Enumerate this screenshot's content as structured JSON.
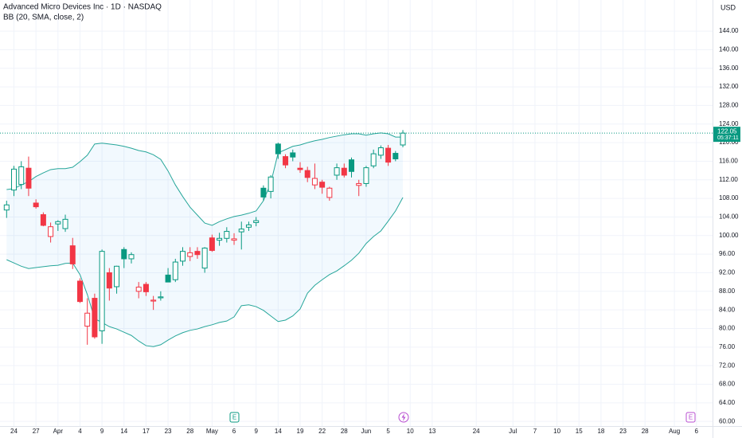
{
  "chart_data": {
    "type": "candlestick",
    "title": "Advanced Micro Devices Inc · 1D · NASDAQ",
    "indicator": "BB (20, SMA, close, 2)",
    "currency": "USD",
    "countdown": "05:37:11",
    "events": [
      "E",
      "E"
    ],
    "up_color": "#089981",
    "down_color": "#f23645",
    "band_color": "#26a69a",
    "grid": true,
    "open": [
      105.5,
      109.8,
      111,
      114.5,
      107,
      104.5,
      99.8,
      102.5,
      101.5,
      97.8,
      90.2,
      80.5,
      86.5,
      79.5,
      92,
      89,
      97,
      95,
      88,
      89.5,
      85.9,
      86.6,
      91.5,
      90.5,
      94.5,
      95.5,
      96.6,
      93,
      99.5,
      99,
      99.4,
      99,
      100.8,
      101.8,
      102.8,
      110.2,
      109.5,
      119.7,
      117,
      117.8,
      114.5,
      114,
      110.9,
      111.5,
      108.2,
      113,
      114.5,
      116.3,
      110.8,
      111.2,
      115,
      117.3,
      118.8,
      117.7,
      119.5
    ],
    "high": [
      107.5,
      115,
      116,
      117,
      107.8,
      105,
      102.8,
      103.3,
      104.5,
      99.5,
      90.8,
      86.5,
      87.5,
      97,
      93,
      93.5,
      97.5,
      96.4,
      90,
      90,
      87,
      88,
      93,
      95,
      97.5,
      97.5,
      97.5,
      97.5,
      100.2,
      100.6,
      101.8,
      100.5,
      103,
      103,
      104,
      110.8,
      113,
      120,
      117.5,
      118.5,
      115.8,
      114.8,
      115.5,
      112,
      110.5,
      115.5,
      115.5,
      116.8,
      112,
      115,
      118.5,
      119.4,
      119.5,
      118.2,
      122.7
    ],
    "low": [
      103.8,
      108.5,
      110,
      108.5,
      105.8,
      102,
      98.5,
      101,
      100.8,
      92.8,
      85.5,
      76.5,
      77.8,
      76.7,
      86,
      87.5,
      93,
      94,
      86.5,
      87,
      84,
      86,
      90,
      90,
      93.5,
      94.5,
      95,
      92,
      96.5,
      97.8,
      98.5,
      98,
      97,
      101,
      102,
      107.5,
      108,
      116.5,
      114.5,
      116,
      113.5,
      111.5,
      110,
      109,
      107.5,
      112,
      112.5,
      112.5,
      108.5,
      110.5,
      114.5,
      116.5,
      115,
      116,
      119
    ],
    "close": [
      106.6,
      114.3,
      114.8,
      110.2,
      106.2,
      102.2,
      101.9,
      103,
      103.5,
      93.9,
      85.8,
      83.3,
      78.2,
      96.6,
      88.7,
      93.4,
      95,
      95.9,
      88.9,
      87.9,
      86.1,
      86.8,
      90,
      94.3,
      96.6,
      96.3,
      95.9,
      97.3,
      96.8,
      99.4,
      100.9,
      99.3,
      101.4,
      102.3,
      103.2,
      108.3,
      112.6,
      117.6,
      115.2,
      116.9,
      114.2,
      112.5,
      112.3,
      110.4,
      110.2,
      114.6,
      113,
      113.8,
      111.2,
      114.6,
      117.6,
      118.9,
      115.8,
      116.5,
      122.05
    ],
    "bb_upper": [
      109.9,
      110.1,
      110.9,
      111.6,
      112.7,
      113.5,
      114.2,
      114.4,
      114.4,
      114.7,
      115.9,
      117.3,
      119.7,
      119.9,
      119.7,
      119.5,
      119.2,
      118.8,
      118.3,
      118.0,
      117.4,
      116.4,
      113.9,
      110.9,
      108.4,
      106.1,
      104.4,
      102.7,
      102.2,
      103.0,
      103.6,
      104.1,
      104.4,
      104.8,
      105.3,
      107.5,
      111.3,
      117.8,
      118.5,
      119.2,
      119.5,
      120.0,
      120.4,
      120.7,
      121.1,
      121.4,
      121.7,
      121.9,
      121.9,
      121.6,
      121.9,
      122.1,
      121.9,
      121.2,
      121.2
    ],
    "bb_lower": [
      94.8,
      94.1,
      93.4,
      92.9,
      93.1,
      93.3,
      93.5,
      93.6,
      94.0,
      94.1,
      91.6,
      87.3,
      82.1,
      81.3,
      80.4,
      79.9,
      79.2,
      78.5,
      77.3,
      76.3,
      76.1,
      76.5,
      77.5,
      78.4,
      79.1,
      79.6,
      79.9,
      80.4,
      80.8,
      81.3,
      81.6,
      82.5,
      84.9,
      85.1,
      84.7,
      83.9,
      82.7,
      81.5,
      81.8,
      82.7,
      84.2,
      87.6,
      89.3,
      90.5,
      91.6,
      92.4,
      93.5,
      94.7,
      96.2,
      98.3,
      99.8,
      101.0,
      103.1,
      105.3,
      108.2
    ],
    "xlim": [
      -0.9,
      96.2
    ],
    "xticks": [
      {
        "value": 1,
        "label": "24"
      },
      {
        "value": 4,
        "label": "27"
      },
      {
        "value": 7,
        "label": "Apr"
      },
      {
        "value": 10,
        "label": "4"
      },
      {
        "value": 13,
        "label": "9"
      },
      {
        "value": 16,
        "label": "14"
      },
      {
        "value": 19,
        "label": "17"
      },
      {
        "value": 22,
        "label": "23"
      },
      {
        "value": 25,
        "label": "28"
      },
      {
        "value": 28,
        "label": "May"
      },
      {
        "value": 31,
        "label": "6"
      },
      {
        "value": 34,
        "label": "9"
      },
      {
        "value": 37,
        "label": "14"
      },
      {
        "value": 40,
        "label": "19"
      },
      {
        "value": 43,
        "label": "22"
      },
      {
        "value": 46,
        "label": "28"
      },
      {
        "value": 49,
        "label": "Jun"
      },
      {
        "value": 52,
        "label": "5"
      },
      {
        "value": 55,
        "label": "10"
      },
      {
        "value": 58,
        "label": "13"
      },
      {
        "value": 64,
        "label": "24"
      },
      {
        "value": 69,
        "label": "Jul"
      },
      {
        "value": 72,
        "label": "7"
      },
      {
        "value": 75,
        "label": "10"
      },
      {
        "value": 78,
        "label": "15"
      },
      {
        "value": 81,
        "label": "18"
      },
      {
        "value": 84,
        "label": "23"
      },
      {
        "value": 87,
        "label": "28"
      },
      {
        "value": 91,
        "label": "Aug"
      },
      {
        "value": 94,
        "label": "6"
      }
    ],
    "ylim": [
      59,
      150.7
    ],
    "yticks": [
      {
        "value": 60,
        "label": "60.00"
      },
      {
        "value": 64,
        "label": "64.00"
      },
      {
        "value": 68,
        "label": "68.00"
      },
      {
        "value": 72,
        "label": "72.00"
      },
      {
        "value": 76,
        "label": "76.00"
      },
      {
        "value": 80,
        "label": "80.00"
      },
      {
        "value": 84,
        "label": "84.00"
      },
      {
        "value": 88,
        "label": "88.00"
      },
      {
        "value": 92,
        "label": "92.00"
      },
      {
        "value": 96,
        "label": "96.00"
      },
      {
        "value": 100,
        "label": "100.00"
      },
      {
        "value": 104,
        "label": "104.00"
      },
      {
        "value": 108,
        "label": "108.00"
      },
      {
        "value": 112,
        "label": "112.00"
      },
      {
        "value": 116,
        "label": "116.00"
      },
      {
        "value": 120,
        "label": "120.00"
      },
      {
        "value": 124,
        "label": "124.00"
      },
      {
        "value": 128,
        "label": "128.00"
      },
      {
        "value": 132,
        "label": "132.00"
      },
      {
        "value": 136,
        "label": "136.00"
      },
      {
        "value": 140,
        "label": "140.00"
      },
      {
        "value": 144,
        "label": "144.00"
      }
    ]
  }
}
